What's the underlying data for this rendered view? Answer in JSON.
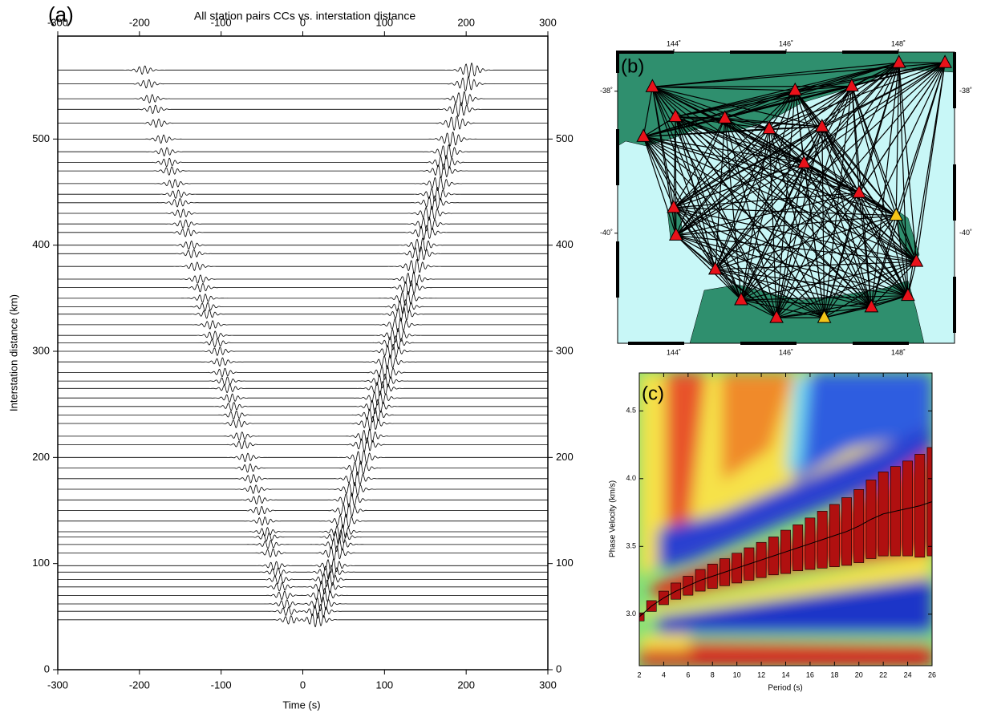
{
  "chart_data": [
    {
      "type": "record-section",
      "label": "(a)",
      "title": "All station pairs CCs vs. interstation distance",
      "xlabel": "Time (s)",
      "ylabel": "Interstation distance (km)",
      "xlim": [
        -300,
        300
      ],
      "xticks": [
        -300,
        -200,
        -100,
        0,
        100,
        200,
        300
      ],
      "ylim": [
        0,
        597
      ],
      "yticks": [
        0,
        100,
        200,
        300,
        400,
        500
      ],
      "distances": [
        47,
        55,
        62,
        70,
        78,
        85,
        92,
        98,
        110,
        118,
        125,
        130,
        140,
        150,
        160,
        170,
        180,
        190,
        200,
        212,
        220,
        232,
        240,
        248,
        256,
        265,
        272,
        280,
        290,
        300,
        308,
        315,
        325,
        335,
        342,
        350,
        360,
        368,
        380,
        392,
        400,
        412,
        420,
        430,
        440,
        448,
        458,
        470,
        478,
        488,
        500,
        515,
        528,
        538,
        552,
        565
      ],
      "causal": [
        17,
        20,
        23,
        25,
        28,
        31,
        33,
        36,
        40,
        43,
        45,
        47,
        51,
        55,
        58,
        62,
        65,
        69,
        73,
        77,
        80,
        84,
        87,
        90,
        93,
        96,
        99,
        102,
        105,
        109,
        112,
        115,
        118,
        122,
        124,
        127,
        131,
        134,
        138,
        143,
        145,
        150,
        153,
        156,
        160,
        163,
        167,
        171,
        174,
        177,
        182,
        187,
        192,
        196,
        201,
        205
      ],
      "acausal": [
        -16,
        -19,
        -21,
        -24,
        -27,
        -29,
        -32,
        -34,
        -38,
        -41,
        -43,
        -45,
        -48,
        -52,
        -55,
        -59,
        -62,
        -66,
        -69,
        -73,
        -76,
        -80,
        -83,
        -86,
        -88,
        -91,
        -94,
        -97,
        -100,
        -103,
        -106,
        -109,
        -112,
        -116,
        -118,
        -121,
        -124,
        -127,
        -131,
        -135,
        -138,
        -142,
        -145,
        -148,
        -152,
        -154,
        -158,
        -162,
        -165,
        -168,
        -172,
        -178,
        -182,
        -186,
        -190,
        -195
      ]
    },
    {
      "type": "map",
      "label": "(b)",
      "xlim": [
        143,
        149
      ],
      "xticks": [
        {
          "value": 144,
          "label": "144˚"
        },
        {
          "value": 146,
          "label": "146˚"
        },
        {
          "value": 148,
          "label": "148˚"
        }
      ],
      "ylim": [
        -41.55,
        -37.45
      ],
      "yticks": [
        {
          "value": -38,
          "label": "-38˚"
        },
        {
          "value": -40,
          "label": "-40˚"
        }
      ],
      "stations": {
        "lon": [
          143.62,
          144.03,
          143.46,
          144.91,
          145.7,
          146.16,
          147.17,
          148.01,
          148.83,
          146.64,
          146.32,
          147.3,
          144.0,
          144.04,
          144.74,
          145.2,
          145.83,
          147.52,
          148.17,
          148.32,
          147.96,
          146.68
        ],
        "lat": [
          -37.94,
          -38.36,
          -38.64,
          -38.38,
          -38.53,
          -37.99,
          -37.93,
          -37.6,
          -37.6,
          -38.5,
          -39.01,
          -39.43,
          -39.64,
          -40.03,
          -40.51,
          -40.94,
          -41.19,
          -41.04,
          -40.88,
          -40.4,
          -39.75,
          -41.19
        ],
        "colors": [
          "#e8121a",
          "#e8121a",
          "#e8121a",
          "#e8121a",
          "#e8121a",
          "#e8121a",
          "#e8121a",
          "#e8121a",
          "#e8121a",
          "#e8121a",
          "#e8121a",
          "#e8121a",
          "#e8121a",
          "#e8121a",
          "#e8121a",
          "#e8121a",
          "#e8121a",
          "#e8121a",
          "#e8121a",
          "#e8121a",
          "#f5c518",
          "#f5c518"
        ]
      }
    },
    {
      "type": "dispersion",
      "label": "(c)",
      "xlabel": "Period (s)",
      "ylabel": "Phase Velocity (km/s)",
      "xlim": [
        2,
        26
      ],
      "xticks": [
        2,
        4,
        6,
        8,
        10,
        12,
        14,
        16,
        18,
        20,
        22,
        24,
        26
      ],
      "ylim": [
        2.62,
        4.78
      ],
      "yticks": [
        {
          "value": 3,
          "label": "3.0"
        },
        3.5,
        {
          "value": 4,
          "label": "4.0"
        },
        4.5
      ],
      "x": [
        2,
        3,
        4,
        5,
        6,
        7,
        8,
        9,
        10,
        11,
        12,
        13,
        14,
        15,
        16,
        17,
        18,
        19,
        20,
        21,
        22,
        23,
        24,
        25,
        26
      ],
      "values": [
        2.98,
        3.06,
        3.12,
        3.17,
        3.21,
        3.25,
        3.28,
        3.31,
        3.34,
        3.37,
        3.4,
        3.43,
        3.46,
        3.49,
        3.52,
        3.55,
        3.58,
        3.61,
        3.65,
        3.7,
        3.74,
        3.76,
        3.78,
        3.8,
        3.83
      ],
      "errors": [
        0.03,
        0.04,
        0.05,
        0.06,
        0.07,
        0.08,
        0.09,
        0.1,
        0.11,
        0.12,
        0.13,
        0.14,
        0.16,
        0.17,
        0.19,
        0.21,
        0.23,
        0.25,
        0.27,
        0.29,
        0.31,
        0.33,
        0.35,
        0.38,
        0.4
      ],
      "color": "#b01010"
    }
  ]
}
